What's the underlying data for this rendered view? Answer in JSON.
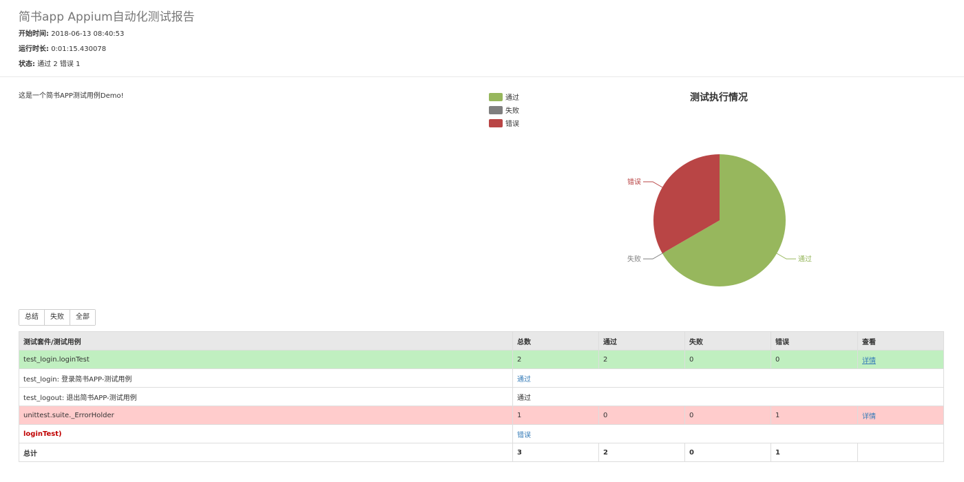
{
  "header": {
    "title": "简书app Appium自动化测试报告",
    "start_label": "开始时间:",
    "start_value": "2018-06-13 08:40:53",
    "duration_label": "运行时长:",
    "duration_value": "0:01:15.430078",
    "status_label": "状态:",
    "status_value": "通过 2 错误 1"
  },
  "description": "这是一个简书APP测试用例Demo!",
  "colors": {
    "pass": "#97b75d",
    "fail": "#7f7f7f",
    "error": "#b94545"
  },
  "chart_data": {
    "type": "pie",
    "title": "测试执行情况",
    "legend_position": "top-left",
    "categories": [
      "通过",
      "失败",
      "错误"
    ],
    "values": [
      2,
      0,
      1
    ],
    "colors": [
      "#97b75d",
      "#7f7f7f",
      "#b94545"
    ]
  },
  "filters": {
    "summary": "总结",
    "failed": "失败",
    "all": "全部"
  },
  "table": {
    "headers": [
      "测试套件/测试用例",
      "总数",
      "通过",
      "失败",
      "错误",
      "查看"
    ],
    "suites": [
      {
        "name": "test_login.loginTest",
        "total": "2",
        "pass": "2",
        "fail": "0",
        "error": "0",
        "view": "详情"
      },
      {
        "name": "unittest.suite._ErrorHolder",
        "total": "1",
        "pass": "0",
        "fail": "0",
        "error": "1",
        "view": "详情"
      }
    ],
    "cases": [
      {
        "name": "test_login: 登录简书APP-测试用例",
        "result": "通过"
      },
      {
        "name": "test_logout: 退出简书APP-测试用例",
        "result": "通过"
      },
      {
        "name": "loginTest)",
        "result": "错误"
      }
    ],
    "totals": {
      "label": "总计",
      "total": "3",
      "pass": "2",
      "fail": "0",
      "error": "1"
    }
  }
}
